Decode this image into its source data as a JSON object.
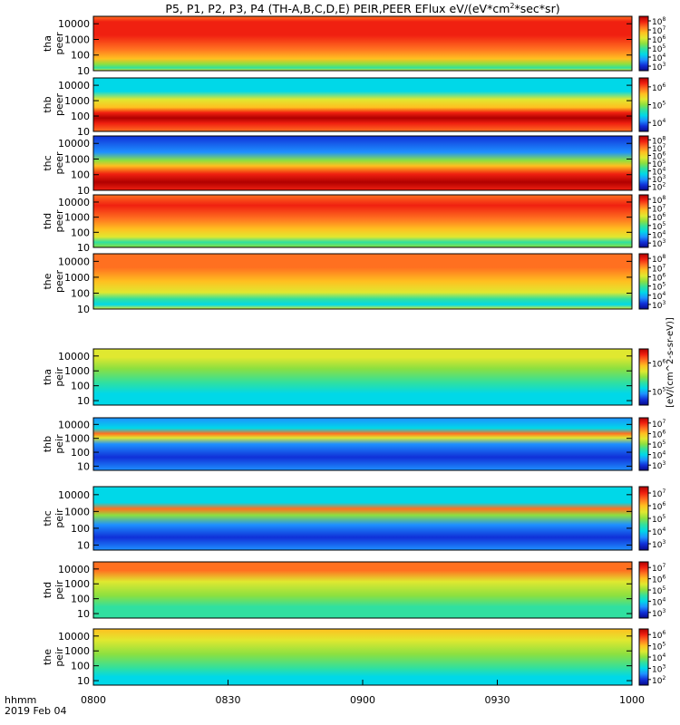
{
  "title": "P5, P1, P2, P3, P4 (TH-A,B,C,D,E) PEIR,PEER EFlux eV/(eV*cm^2*sec*sr)",
  "title_parts": {
    "before": "P5, P1, P2, P3, P4 (TH-A,B,C,D,E) PEIR,PEER EFlux eV/(eV*cm",
    "sup": "2",
    "after": "*sec*sr)"
  },
  "colorbar_unit_label": "[eV/(cm^2-s-sr-eV)]",
  "colormap": [
    "#0a0a8c",
    "#1030d8",
    "#1e90ff",
    "#00d8e8",
    "#30e0a0",
    "#8ce040",
    "#e0e830",
    "#ffc020",
    "#ff7020",
    "#f02010",
    "#b00000"
  ],
  "time_axis": {
    "label_line1": "hhmm",
    "label_line2": "2019 Feb 04",
    "ticks": [
      "0800",
      "0830",
      "0900",
      "0930",
      "1000"
    ]
  },
  "chart_data": [
    {
      "type": "heatmap",
      "label_line1": "tha",
      "label_line2": "peer",
      "yscale": "log",
      "ylim": [
        10,
        30000
      ],
      "yticks": [
        "10",
        "100",
        "1000",
        "10000"
      ],
      "cbar_ticks": [
        {
          "base": "10",
          "exp": "3"
        },
        {
          "base": "10",
          "exp": "4"
        },
        {
          "base": "10",
          "exp": "5"
        },
        {
          "base": "10",
          "exp": "6"
        },
        {
          "base": "10",
          "exp": "7"
        },
        {
          "base": "10",
          "exp": "8"
        }
      ]
    },
    {
      "type": "heatmap",
      "label_line1": "thb",
      "label_line2": "peer",
      "yscale": "log",
      "ylim": [
        10,
        30000
      ],
      "yticks": [
        "10",
        "100",
        "1000",
        "10000"
      ],
      "cbar_ticks": [
        {
          "base": "10",
          "exp": "4"
        },
        {
          "base": "10",
          "exp": "5"
        },
        {
          "base": "10",
          "exp": "6"
        }
      ]
    },
    {
      "type": "heatmap",
      "label_line1": "thc",
      "label_line2": "peer",
      "yscale": "log",
      "ylim": [
        10,
        30000
      ],
      "yticks": [
        "10",
        "100",
        "1000",
        "10000"
      ],
      "cbar_ticks": [
        {
          "base": "10",
          "exp": "2"
        },
        {
          "base": "10",
          "exp": "3"
        },
        {
          "base": "10",
          "exp": "4"
        },
        {
          "base": "10",
          "exp": "5"
        },
        {
          "base": "10",
          "exp": "6"
        },
        {
          "base": "10",
          "exp": "7"
        },
        {
          "base": "10",
          "exp": "8"
        }
      ]
    },
    {
      "type": "heatmap",
      "label_line1": "thd",
      "label_line2": "peer",
      "yscale": "log",
      "ylim": [
        10,
        30000
      ],
      "yticks": [
        "10",
        "100",
        "1000",
        "10000"
      ],
      "cbar_ticks": [
        {
          "base": "10",
          "exp": "3"
        },
        {
          "base": "10",
          "exp": "4"
        },
        {
          "base": "10",
          "exp": "5"
        },
        {
          "base": "10",
          "exp": "6"
        },
        {
          "base": "10",
          "exp": "7"
        },
        {
          "base": "10",
          "exp": "8"
        }
      ]
    },
    {
      "type": "heatmap",
      "label_line1": "the",
      "label_line2": "peer",
      "yscale": "log",
      "ylim": [
        10,
        30000
      ],
      "yticks": [
        "10",
        "100",
        "1000",
        "10000"
      ],
      "cbar_ticks": [
        {
          "base": "10",
          "exp": "3"
        },
        {
          "base": "10",
          "exp": "4"
        },
        {
          "base": "10",
          "exp": "5"
        },
        {
          "base": "10",
          "exp": "6"
        },
        {
          "base": "10",
          "exp": "7"
        },
        {
          "base": "10",
          "exp": "8"
        }
      ]
    },
    {
      "type": "heatmap",
      "label_line1": "tha",
      "label_line2": "peir",
      "yscale": "log",
      "ylim": [
        5,
        30000
      ],
      "yticks": [
        "10",
        "100",
        "1000",
        "10000"
      ],
      "cbar_ticks": [
        {
          "base": "10",
          "exp": "5"
        },
        {
          "base": "10",
          "exp": "6"
        }
      ]
    },
    {
      "type": "heatmap",
      "label_line1": "thb",
      "label_line2": "peir",
      "yscale": "log",
      "ylim": [
        5,
        30000
      ],
      "yticks": [
        "10",
        "100",
        "1000",
        "10000"
      ],
      "cbar_ticks": [
        {
          "base": "10",
          "exp": "3"
        },
        {
          "base": "10",
          "exp": "4"
        },
        {
          "base": "10",
          "exp": "5"
        },
        {
          "base": "10",
          "exp": "6"
        },
        {
          "base": "10",
          "exp": "7"
        }
      ]
    },
    {
      "type": "heatmap",
      "label_line1": "thc",
      "label_line2": "peir",
      "yscale": "log",
      "ylim": [
        5,
        30000
      ],
      "yticks": [
        "10",
        "100",
        "1000",
        "10000"
      ],
      "cbar_ticks": [
        {
          "base": "10",
          "exp": "3"
        },
        {
          "base": "10",
          "exp": "4"
        },
        {
          "base": "10",
          "exp": "5"
        },
        {
          "base": "10",
          "exp": "6"
        },
        {
          "base": "10",
          "exp": "7"
        }
      ]
    },
    {
      "type": "heatmap",
      "label_line1": "thd",
      "label_line2": "peir",
      "yscale": "log",
      "ylim": [
        5,
        30000
      ],
      "yticks": [
        "10",
        "100",
        "1000",
        "10000"
      ],
      "cbar_ticks": [
        {
          "base": "10",
          "exp": "3"
        },
        {
          "base": "10",
          "exp": "4"
        },
        {
          "base": "10",
          "exp": "5"
        },
        {
          "base": "10",
          "exp": "6"
        },
        {
          "base": "10",
          "exp": "7"
        }
      ]
    },
    {
      "type": "heatmap",
      "label_line1": "the",
      "label_line2": "peir",
      "yscale": "log",
      "ylim": [
        5,
        30000
      ],
      "yticks": [
        "10",
        "100",
        "1000",
        "10000"
      ],
      "cbar_ticks": [
        {
          "base": "10",
          "exp": "2"
        },
        {
          "base": "10",
          "exp": "3"
        },
        {
          "base": "10",
          "exp": "4"
        },
        {
          "base": "10",
          "exp": "5"
        },
        {
          "base": "10",
          "exp": "6"
        }
      ]
    }
  ]
}
